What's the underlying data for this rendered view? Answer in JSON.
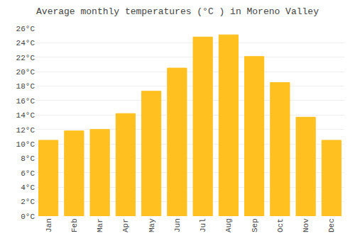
{
  "chart_data": {
    "type": "bar",
    "title": "Average monthly temperatures (°C ) in Moreno Valley",
    "categories": [
      "Jan",
      "Feb",
      "Mar",
      "Apr",
      "May",
      "Jun",
      "Jul",
      "Aug",
      "Sep",
      "Oct",
      "Nov",
      "Dec"
    ],
    "values": [
      10.5,
      11.8,
      12.0,
      14.2,
      17.3,
      20.5,
      24.8,
      25.1,
      22.1,
      18.5,
      13.7,
      10.5
    ],
    "color": "#FFC020",
    "ylim": [
      0,
      26
    ],
    "yticks": [
      {
        "value": 0,
        "label": "0°C"
      },
      {
        "value": 2,
        "label": "2°C"
      },
      {
        "value": 4,
        "label": "4°C"
      },
      {
        "value": 6,
        "label": "6°C"
      },
      {
        "value": 8,
        "label": "8°C"
      },
      {
        "value": 10,
        "label": "10°C"
      },
      {
        "value": 12,
        "label": "12°C"
      },
      {
        "value": 14,
        "label": "14°C"
      },
      {
        "value": 16,
        "label": "16°C"
      },
      {
        "value": 18,
        "label": "18°C"
      },
      {
        "value": 20,
        "label": "20°C"
      },
      {
        "value": 22,
        "label": "22°C"
      },
      {
        "value": 24,
        "label": "24°C"
      },
      {
        "value": 26,
        "label": "26°C"
      }
    ],
    "grid": true
  }
}
